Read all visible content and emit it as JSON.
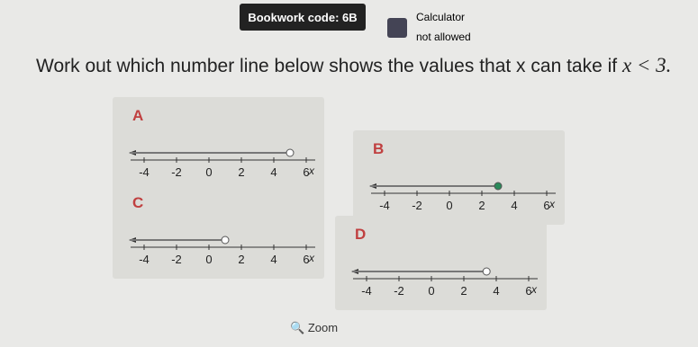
{
  "header": {
    "bookwork_code": "Bookwork code: 6B",
    "calculator_title": "Calculator",
    "calculator_status": "not allowed"
  },
  "question": {
    "text": "Work out which number line below shows the values that x can take if",
    "inequality": "x < 3."
  },
  "number_line": {
    "labels": [
      "-4",
      "-2",
      "0",
      "2",
      "4",
      "6"
    ],
    "variable": "x"
  },
  "options": [
    {
      "letter": "A"
    },
    {
      "letter": "B"
    },
    {
      "letter": "C"
    },
    {
      "letter": "D"
    }
  ],
  "zoom": "Zoom"
}
